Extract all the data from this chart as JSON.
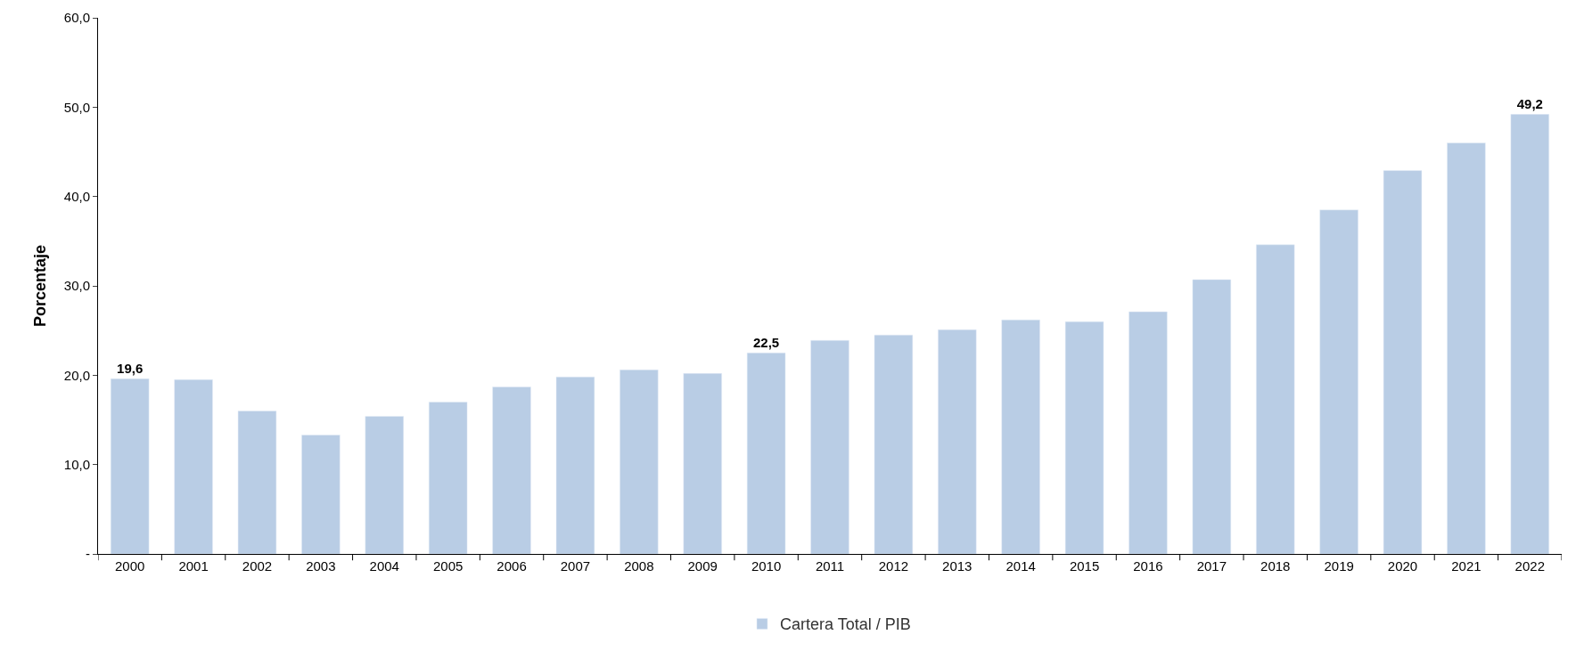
{
  "chart_data": {
    "type": "bar",
    "ylabel": "Porcentaje",
    "categories": [
      "2000",
      "2001",
      "2002",
      "2003",
      "2004",
      "2005",
      "2006",
      "2007",
      "2008",
      "2009",
      "2010",
      "2011",
      "2012",
      "2013",
      "2014",
      "2015",
      "2016",
      "2017",
      "2018",
      "2019",
      "2020",
      "2021",
      "2022"
    ],
    "series": [
      {
        "name": "Cartera Total / PIB",
        "color": "#b9cde5",
        "values": [
          19.6,
          19.5,
          16.0,
          13.3,
          15.4,
          17.0,
          18.7,
          19.8,
          20.6,
          20.2,
          22.5,
          23.9,
          24.5,
          25.1,
          26.2,
          26.0,
          27.1,
          30.7,
          34.6,
          38.5,
          42.9,
          46.0,
          49.2
        ],
        "value_labels": [
          "19,6",
          null,
          null,
          null,
          null,
          null,
          null,
          null,
          null,
          null,
          "22,5",
          null,
          null,
          null,
          null,
          null,
          null,
          null,
          null,
          null,
          null,
          null,
          "49,2"
        ]
      }
    ],
    "ylim": [
      0,
      60
    ],
    "yticks": [
      {
        "value": 0,
        "label": "-"
      },
      {
        "value": 10,
        "label": "10,0"
      },
      {
        "value": 20,
        "label": "20,0"
      },
      {
        "value": 30,
        "label": "30,0"
      },
      {
        "value": 40,
        "label": "40,0"
      },
      {
        "value": 50,
        "label": "50,0"
      },
      {
        "value": 60,
        "label": "60,0"
      }
    ],
    "legend": "bottom"
  }
}
